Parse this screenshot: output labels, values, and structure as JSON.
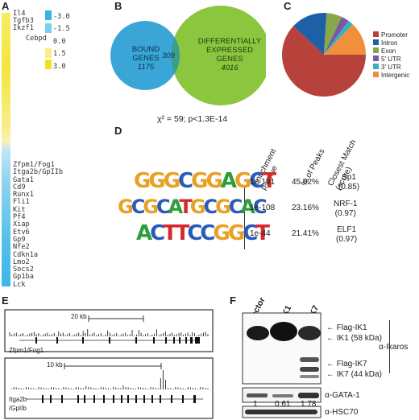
{
  "panels": {
    "a": "A",
    "b": "B",
    "c": "C",
    "d": "D",
    "e": "E",
    "f": "F"
  },
  "panelA": {
    "top_genes": [
      "Il4",
      "Tgfb3",
      "Ikzf1"
    ],
    "mid_gene": "Cebpd",
    "scale": [
      "-3.0",
      "-1.5",
      "0.0",
      "1.5",
      "3.0"
    ],
    "genes": [
      "Zfpm1/Fog1",
      "Itga2b/GpIIb",
      "Gata1",
      "Cd9",
      "Runx1",
      "Fli1",
      "Kit",
      "Pf4",
      "Xiap",
      "Etv6",
      "Gp9",
      "Nfe2",
      "Cdkn1a",
      "Lmo2",
      "Socs2",
      "Gp1ba",
      "Lck"
    ],
    "colors": {
      "up": "#f4e53b",
      "down": "#56c1e9"
    }
  },
  "panelB": {
    "left_label_1": "BOUND",
    "left_label_2": "GENES",
    "left_count": "1175",
    "overlap": "309",
    "right_label_1": "DIFFERENTIALLY",
    "right_label_2": "EXPRESSED",
    "right_label_3": "GENES",
    "right_count": "4016",
    "stat": "χ² = 59; p<1.3E-14",
    "colors": {
      "left": "#3aa6d8",
      "right": "#8cc63f",
      "overlap": "#3a9e8a"
    }
  },
  "chart_data": {
    "type": "pie",
    "categories": [
      "Promoter",
      "Intron",
      "Exon",
      "5' UTR",
      "3' UTR",
      "Intergenic"
    ],
    "values": [
      62,
      14,
      6,
      3,
      2,
      13
    ],
    "colors": [
      "#b7423b",
      "#1f5fa8",
      "#86a84a",
      "#7a5a9e",
      "#2fb3c6",
      "#f08f3c"
    ],
    "legend_position": "right"
  },
  "panelD": {
    "headers": {
      "enrich": "Enrichment",
      "pvalue": "p-value",
      "peaks": "% of Peaks",
      "closest": "Closest Match",
      "score": "(score)"
    },
    "rows": [
      {
        "motif": [
          "G",
          "G",
          "G",
          "C",
          "G",
          "G",
          "A",
          "G",
          "C",
          "T"
        ],
        "p": "1e-191",
        "peaks": "45.02%",
        "match": "Sp1",
        "score": "(0.85)"
      },
      {
        "motif": [
          "G",
          "C",
          "G",
          "C",
          "A",
          "T",
          "G",
          "C",
          "G",
          "C",
          "A",
          "C"
        ],
        "p": "1e-108",
        "peaks": "23.16%",
        "match": "NRF-1",
        "score": "(0.97)"
      },
      {
        "motif": [
          "A",
          "C",
          "T",
          "T",
          "C",
          "C",
          "G",
          "G",
          "C",
          "T"
        ],
        "p": "1e-44",
        "peaks": "21.41%",
        "match": "ELF1",
        "score": "(0.97)"
      }
    ]
  },
  "panelE": {
    "track1": {
      "scale": "20 kb",
      "gene": "Zfpm1/Fog1"
    },
    "track2": {
      "scale": "10 kb",
      "gene_1": "Itga2b",
      "gene_2": "/GpIIb"
    }
  },
  "panelF": {
    "lanes": [
      "Vector",
      "IK1",
      "IK7"
    ],
    "bands": [
      "Flag-IK1",
      "IK1 (58 kDa)",
      "Flag-IK7",
      "IK7 (44 kDa)"
    ],
    "ikaros": "α-Ikaros",
    "gata": "α-GATA-1",
    "gata_values": [
      "1",
      "0.61",
      "1.78"
    ],
    "hsc": "α-HSC70"
  }
}
